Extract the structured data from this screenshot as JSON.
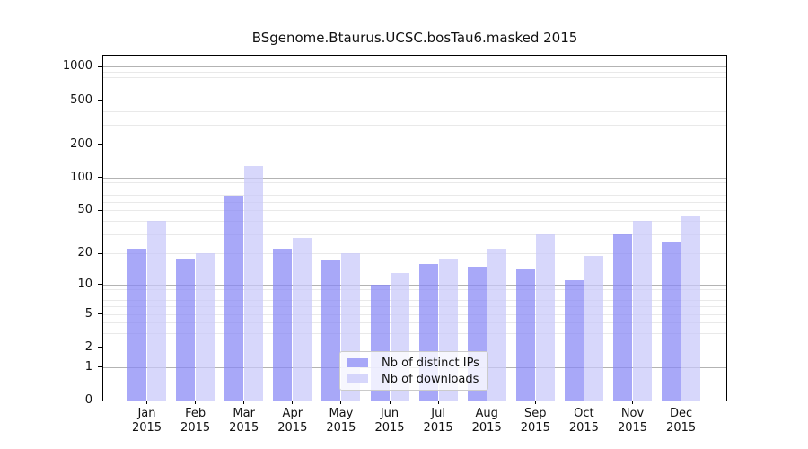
{
  "title": "BSgenome.Btaurus.UCSC.bosTau6.masked 2015",
  "chart_data": {
    "type": "bar",
    "title": "BSgenome.Btaurus.UCSC.bosTau6.masked 2015",
    "y_scale": "log1p",
    "grid": "on",
    "ylim": [
      0,
      1260
    ],
    "y_ticks": [
      0,
      1,
      2,
      5,
      10,
      20,
      50,
      100,
      200,
      500,
      1000
    ],
    "categories": [
      "Jan",
      "Feb",
      "Mar",
      "Apr",
      "May",
      "Jun",
      "Jul",
      "Aug",
      "Sep",
      "Oct",
      "Nov",
      "Dec"
    ],
    "x_tick_year": "2015",
    "series": [
      {
        "name": "Nb of distinct IPs",
        "color": "rgba(134,134,245,0.72)",
        "values": [
          22,
          18,
          68,
          22,
          17,
          10,
          16,
          15,
          14,
          11,
          30,
          26
        ]
      },
      {
        "name": "Nb of downloads",
        "color": "rgba(199,199,250,0.72)",
        "values": [
          40,
          20,
          128,
          28,
          20,
          13,
          18,
          22,
          30,
          19,
          40,
          45
        ]
      }
    ],
    "legend_position": "bottom-center"
  },
  "colors": {
    "background": "#ffffff",
    "axis": "#000000",
    "major_grid": "#b3b3b3",
    "minor_grid": "#e9e9e9",
    "bar_distinct_ips": "rgba(134,134,245,0.72)",
    "bar_downloads": "rgba(199,199,250,0.72)"
  }
}
